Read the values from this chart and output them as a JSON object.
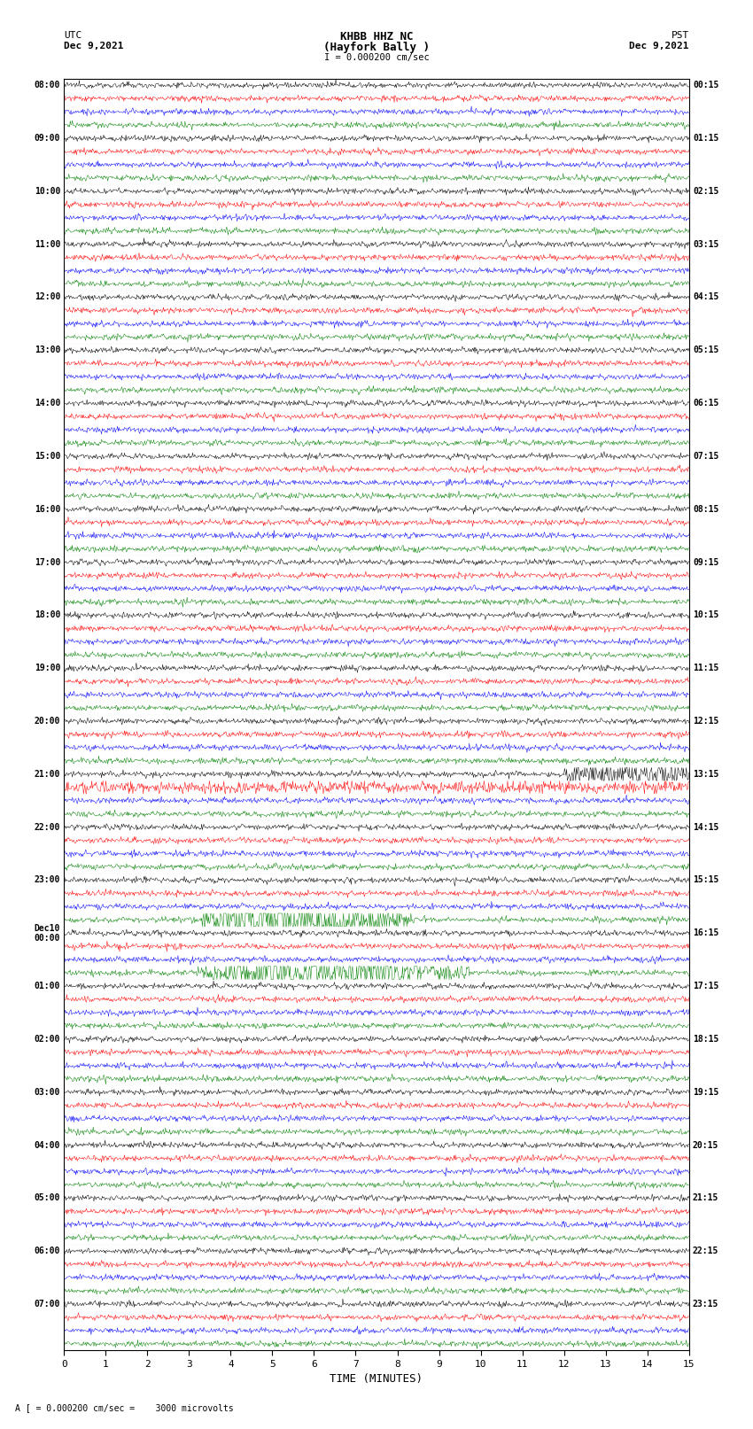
{
  "title_line1": "KHBB HHZ NC",
  "title_line2": "(Hayfork Bally )",
  "scale_label": "I = 0.000200 cm/sec",
  "left_label_top": "UTC",
  "left_label_date": "Dec 9,2021",
  "right_label_top": "PST",
  "right_label_date": "Dec 9,2021",
  "bottom_xlabel": "TIME (MINUTES)",
  "bottom_note": "A [ = 0.000200 cm/sec =    3000 microvolts",
  "trace_colors": [
    "black",
    "red",
    "blue",
    "green"
  ],
  "background_color": "white",
  "left_times": [
    "08:00",
    "09:00",
    "10:00",
    "11:00",
    "12:00",
    "13:00",
    "14:00",
    "15:00",
    "16:00",
    "17:00",
    "18:00",
    "19:00",
    "20:00",
    "21:00",
    "22:00",
    "23:00",
    "Dec10\n00:00",
    "01:00",
    "02:00",
    "03:00",
    "04:00",
    "05:00",
    "06:00",
    "07:00"
  ],
  "right_times": [
    "00:15",
    "01:15",
    "02:15",
    "03:15",
    "04:15",
    "05:15",
    "06:15",
    "07:15",
    "08:15",
    "09:15",
    "10:15",
    "11:15",
    "12:15",
    "13:15",
    "14:15",
    "15:15",
    "16:15",
    "17:15",
    "18:15",
    "19:15",
    "20:15",
    "21:15",
    "22:15",
    "23:15"
  ],
  "xmin": 0,
  "xmax": 15,
  "xticks": [
    0,
    1,
    2,
    3,
    4,
    5,
    6,
    7,
    8,
    9,
    10,
    11,
    12,
    13,
    14,
    15
  ],
  "noise_amplitude": 0.28,
  "figwidth": 8.5,
  "figheight": 16.13,
  "num_hours": 24,
  "traces_per_hour": 4
}
